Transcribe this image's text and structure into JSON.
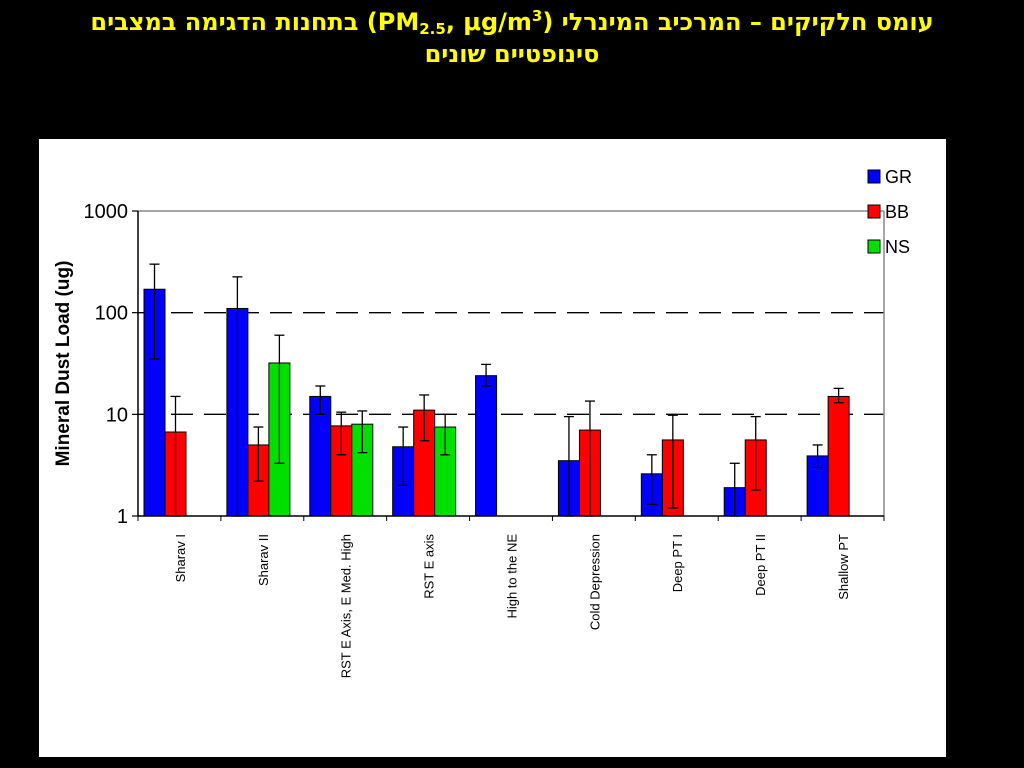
{
  "slide": {
    "title_line1_part1": "עומס חלקיקים – המרכיב המינרלי (PM",
    "title_sub": "2.5",
    "title_line1_part2": ", μg/m",
    "title_sup": "3",
    "title_line1_part3": ") בתחנות הדגימה במצבים",
    "title_line2": "סינופטיים שונים"
  },
  "colors": {
    "background": "#000000",
    "title": "#ffff00",
    "panel": "#ffffff",
    "GR": "#0000ff",
    "BB": "#ff0000",
    "NS": "#00e000"
  },
  "chart_data": {
    "type": "bar",
    "ylabel": "Mineral Dust Load (ug)",
    "yscale": "log",
    "ylim": [
      1,
      1000
    ],
    "yticks": [
      1,
      10,
      100,
      1000
    ],
    "ytick_labels": [
      "1",
      "10",
      "100",
      "1000"
    ],
    "grid": "dashed horizontal at 10 and 100",
    "legend_position": "top-right",
    "categories": [
      "Sharav I",
      "Sharav II",
      "RST E Axis, E Med. High",
      "RST E axis",
      "High to the NE",
      "Cold Depression",
      "Deep PT I",
      "Deep PT II",
      "Shallow PT"
    ],
    "series": [
      {
        "name": "GR",
        "values": [
          170,
          110,
          15,
          4.8,
          24,
          3.5,
          2.6,
          1.9,
          3.9
        ],
        "err_high": [
          300,
          225,
          19,
          7.5,
          31,
          9.5,
          4,
          3.3,
          5
        ],
        "err_low": [
          35,
          1,
          10,
          2,
          19,
          1,
          1.3,
          1,
          3
        ]
      },
      {
        "name": "BB",
        "values": [
          6.7,
          5,
          7.7,
          11,
          null,
          7,
          5.6,
          5.6,
          15
        ],
        "err_high": [
          15,
          7.5,
          10.5,
          15.5,
          null,
          13.5,
          9.8,
          9.5,
          18
        ],
        "err_low": [
          1,
          2.2,
          4,
          5.5,
          null,
          1,
          1.2,
          1.8,
          13
        ]
      },
      {
        "name": "NS",
        "values": [
          null,
          32,
          8,
          7.5,
          null,
          null,
          null,
          null,
          null
        ],
        "err_high": [
          null,
          60,
          10.8,
          10,
          null,
          null,
          null,
          null,
          null
        ],
        "err_low": [
          null,
          3.3,
          4.2,
          4,
          null,
          null,
          null,
          null,
          null
        ]
      }
    ]
  }
}
